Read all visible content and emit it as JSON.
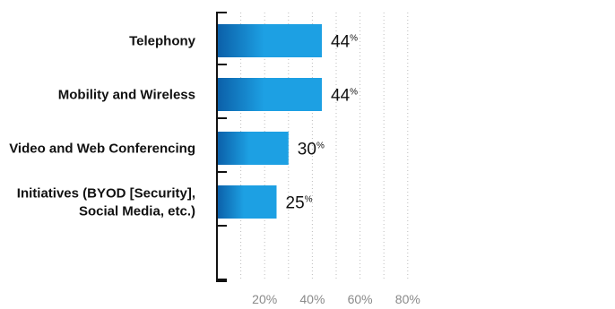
{
  "chart_data": {
    "type": "bar",
    "orientation": "horizontal",
    "categories": [
      [
        "Telephony"
      ],
      [
        "Mobility and Wireless"
      ],
      [
        "Video and Web Conferencing"
      ],
      [
        "Initiatives (BYOD [Security],",
        "Social Media, etc.)"
      ]
    ],
    "values": [
      44,
      44,
      30,
      25
    ],
    "value_labels": [
      "44",
      "44",
      "30",
      "25"
    ],
    "value_suffix": "%",
    "xlim": [
      0,
      80
    ],
    "x_ticks": [
      20,
      40,
      60,
      80
    ],
    "x_tick_labels": [
      "20%",
      "40%",
      "60%",
      "80%"
    ],
    "grid": "vertical dotted",
    "bar_color_start": "#0b5fa8",
    "bar_color_end": "#1da0e3"
  }
}
